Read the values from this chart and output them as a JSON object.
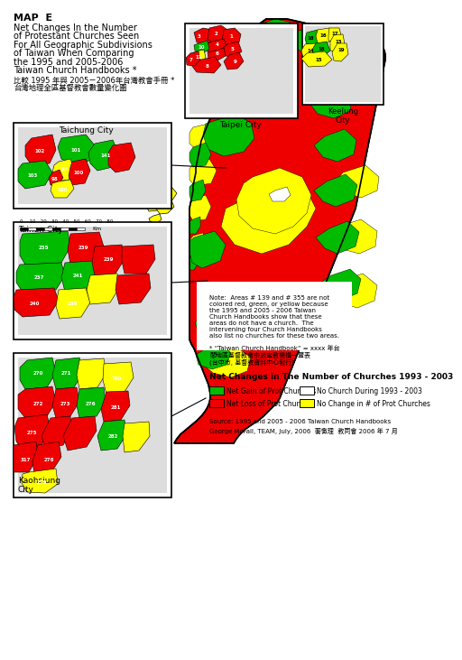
{
  "title_lines": [
    "MAP  E",
    "Net Changes In the Number",
    "of Protestant Churches Seen",
    "For All Geographic Subdivisions",
    "of Taiwan When Comparing",
    "the 1995 and 2005-2006",
    "Taiwan Church Handbooks *"
  ],
  "subtitle_chinese": [
    "比較 1995 年與 2005－2006年台灣教會手冊 *",
    "台灣地理全區基督教會數量變化圖"
  ],
  "legend_title": "Net Changes in The Number of Churches 1993 - 2003",
  "legend_items": [
    {
      "label": "Net Gain of Prot Churches",
      "color": "#00BB00"
    },
    {
      "label": "Net Loss of Prot Churches",
      "color": "#EE0000"
    },
    {
      "label": "No Church During 1993 - 2003",
      "color": "#FFFFFF"
    },
    {
      "label": "No Change in # of Prot Churches",
      "color": "#FFFF00"
    }
  ],
  "source_line1": "Source: 1995 and 2005 - 2006 Taiwan Church Handbooks",
  "source_line2": "George McFall, TEAM, July, 2006  蘅憿理  教同會 2006 年 7 月",
  "note_text": "Note:  Areas # 139 and # 355 are not\ncolored red, green, or yellow because\nthe 1995 and 2005 - 2006 Taiwan\nChurch Handbooks show that these\nareas do not have a church.  The\nintervening four Church Handbooks\nalso list no churches for these two areas.",
  "footnote_line1": "* “Taiwan Church Handbook” = xxxx 年台",
  "footnote_line2": "閣地區基督教會宗派宣教機構一覽表",
  "footnote_line3": "(台中市, 基督教資料中心發行)",
  "RED": "#EE0000",
  "GREEN": "#00BB00",
  "YELLOW": "#FFFF00",
  "WHITE": "#FFFFFF",
  "BGCOL": "#FFFFFF"
}
